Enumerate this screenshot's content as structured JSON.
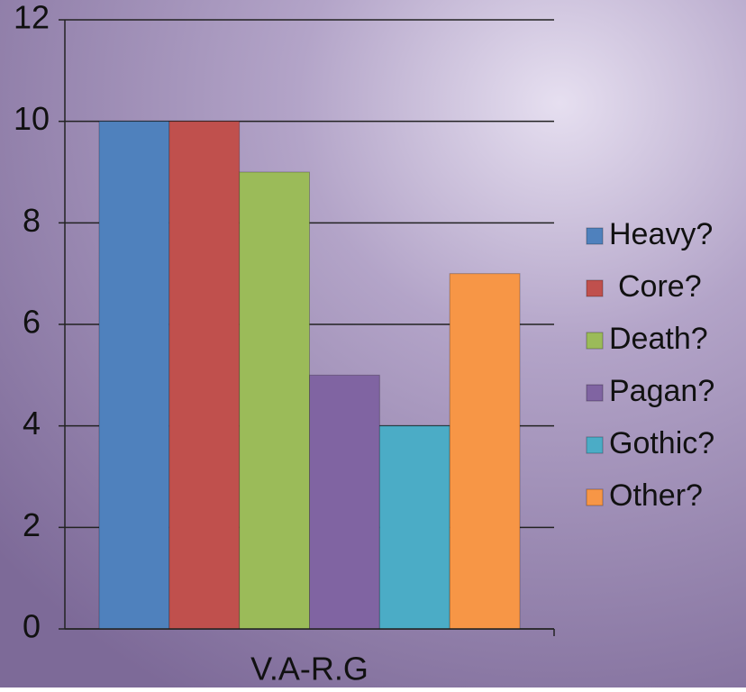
{
  "chart_data": {
    "type": "bar",
    "categories": [
      "V.A-R.G"
    ],
    "series": [
      {
        "name": "Heavy?",
        "color": "#4f81bd",
        "values": [
          10
        ]
      },
      {
        "name": "Core?",
        "color": "#c0504d",
        "values": [
          10
        ]
      },
      {
        "name": "Death?",
        "color": "#9bbb59",
        "values": [
          9
        ]
      },
      {
        "name": "Pagan?",
        "color": "#8064a2",
        "values": [
          5
        ]
      },
      {
        "name": "Gothic?",
        "color": "#4bacc6",
        "values": [
          4
        ]
      },
      {
        "name": "Other?",
        "color": "#f79646",
        "values": [
          7
        ]
      }
    ],
    "ylim": [
      0,
      12
    ],
    "yticks": [
      0,
      2,
      4,
      6,
      8,
      10,
      12
    ],
    "grid": true,
    "legend": "right"
  }
}
